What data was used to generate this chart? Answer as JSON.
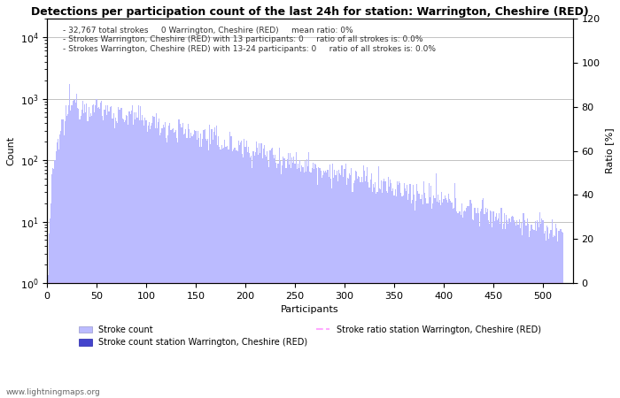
{
  "title": "Detections per participation count of the last 24h for station: Warrington, Cheshire (RED)",
  "annotation_lines": [
    "32,767 total strokes     0 Warrington, Cheshire (RED)     mean ratio: 0%",
    "Strokes Warrington, Cheshire (RED) with 13 participants: 0     ratio of all strokes is: 0.0%",
    "Strokes Warrington, Cheshire (RED) with 13-24 participants: 0     ratio of all strokes is: 0.0%"
  ],
  "xlabel": "Participants",
  "ylabel_left": "Count",
  "ylabel_right": "Ratio [%]",
  "xlim": [
    0,
    530
  ],
  "ylim_left": [
    1,
    20000
  ],
  "ylim_right": [
    0,
    120
  ],
  "yticks_right": [
    0,
    20,
    40,
    60,
    80,
    100,
    120
  ],
  "xticks": [
    0,
    50,
    100,
    150,
    200,
    250,
    300,
    350,
    400,
    450,
    500
  ],
  "bar_color": "#bbbbff",
  "station_bar_color": "#4444cc",
  "ratio_line_color": "#ffaaff",
  "legend_label_stroke": "Stroke count",
  "legend_label_station": "Stroke count station Warrington, Cheshire (RED)",
  "legend_label_ratio": "Stroke ratio station Warrington, Cheshire (RED)",
  "watermark": "www.lightningmaps.org",
  "grid_color": "#aaaaaa",
  "bg_color": "#ffffff",
  "peak_x": 25,
  "peak_val": 900,
  "decay_rate": 0.01,
  "noise_sigma": 0.25,
  "total_x": 520
}
